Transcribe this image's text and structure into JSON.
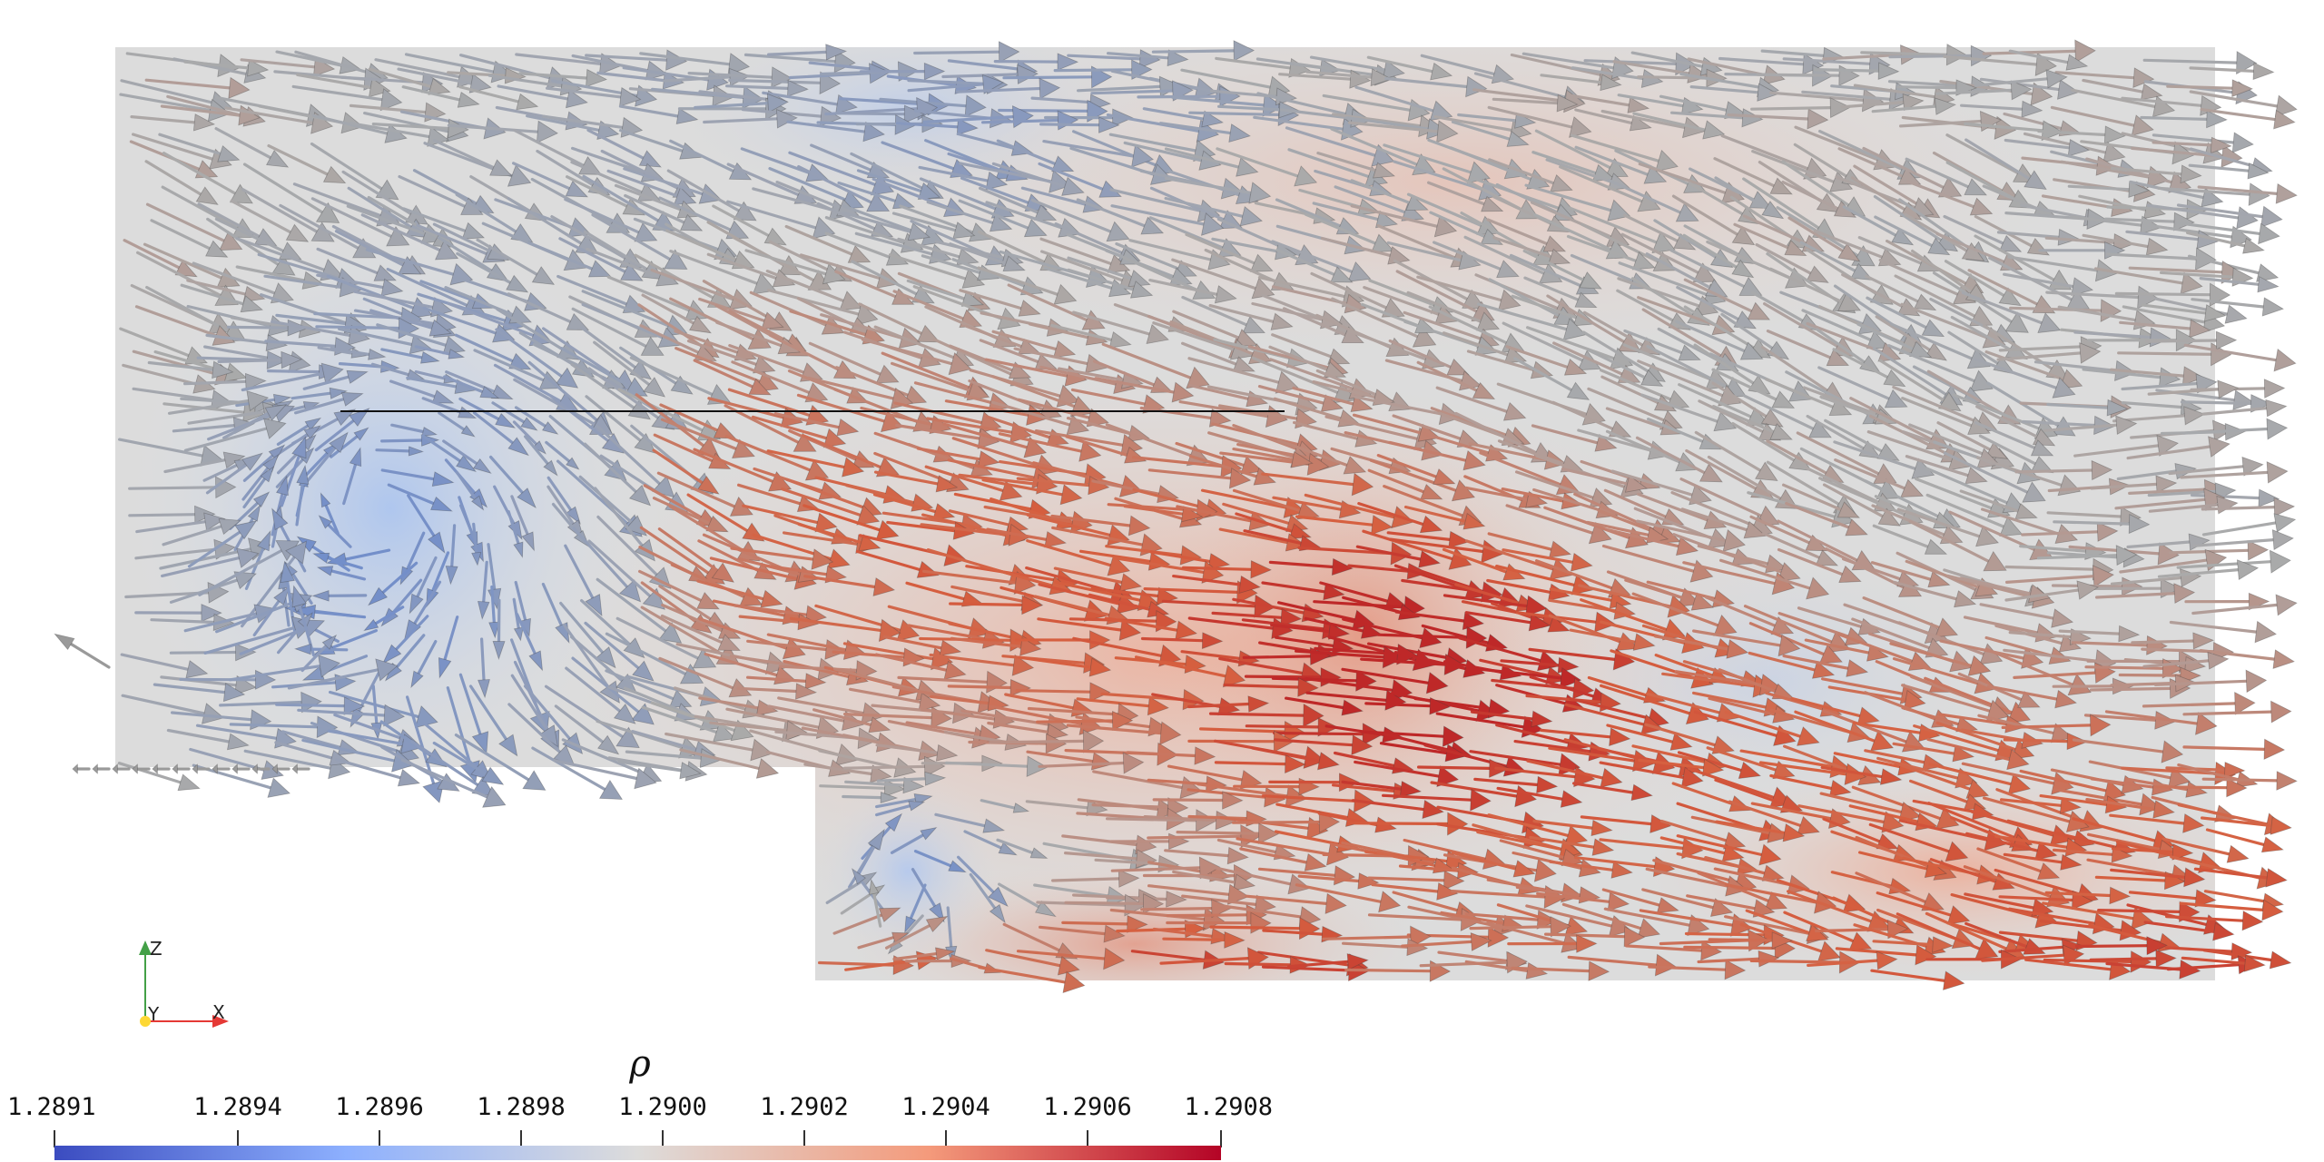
{
  "colorbar": {
    "title": "ρ",
    "min": 1.2891,
    "max": 1.2908,
    "ticks": [
      {
        "label": "1.2891",
        "value": 1.2891
      },
      {
        "label": "1.2894",
        "value": 1.2894
      },
      {
        "label": "1.2896",
        "value": 1.2896
      },
      {
        "label": "1.2898",
        "value": 1.2898
      },
      {
        "label": "1.2900",
        "value": 1.29
      },
      {
        "label": "1.2902",
        "value": 1.2902
      },
      {
        "label": "1.2904",
        "value": 1.2904
      },
      {
        "label": "1.2906",
        "value": 1.2906
      },
      {
        "label": "1.2908",
        "value": 1.2908
      }
    ],
    "colors": {
      "low": "#3b4cc0",
      "mid": "#dddcdb",
      "high": "#b40426"
    }
  },
  "orientation_axes": {
    "z_label": "Z",
    "y_label": "Y",
    "x_label": "X",
    "colors": {
      "x": "#e53935",
      "y": "#fdd835",
      "z": "#43a047"
    }
  },
  "field": {
    "quantity": "velocity glyphs colored by density",
    "arrow_color": "#9a9a9a"
  }
}
